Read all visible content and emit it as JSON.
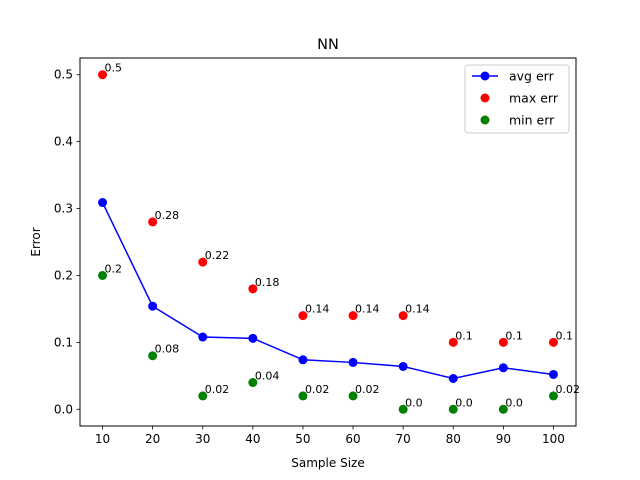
{
  "chart_data": {
    "type": "line",
    "title": "NN",
    "xlabel": "Sample Size",
    "ylabel": "Error",
    "x": [
      10,
      20,
      30,
      40,
      50,
      60,
      70,
      80,
      90,
      100
    ],
    "xlim": [
      5.5,
      104.5
    ],
    "ylim": [
      -0.025,
      0.525
    ],
    "xticks": [
      "10",
      "20",
      "30",
      "40",
      "50",
      "60",
      "70",
      "80",
      "90",
      "100"
    ],
    "yticks": [
      0.0,
      0.1,
      0.2,
      0.3,
      0.4,
      0.5
    ],
    "ytick_labels": [
      "0.0",
      "0.1",
      "0.2",
      "0.3",
      "0.4",
      "0.5"
    ],
    "grid": false,
    "legend_position": "top-right",
    "series": [
      {
        "name": "avg err",
        "style": "line-marker",
        "color": "#0000ff",
        "values": [
          0.309,
          0.154,
          0.108,
          0.106,
          0.074,
          0.07,
          0.064,
          0.046,
          0.062,
          0.052
        ]
      },
      {
        "name": "max err",
        "style": "marker",
        "color": "#ff0000",
        "values": [
          0.5,
          0.28,
          0.22,
          0.18,
          0.14,
          0.14,
          0.14,
          0.1,
          0.1,
          0.1
        ],
        "labels": [
          "0.5",
          "0.28",
          "0.22",
          "0.18",
          "0.14",
          "0.14",
          "0.14",
          "0.1",
          "0.1",
          "0.1"
        ]
      },
      {
        "name": "min err",
        "style": "marker",
        "color": "#008000",
        "values": [
          0.2,
          0.08,
          0.02,
          0.04,
          0.02,
          0.02,
          0.0,
          0.0,
          0.0,
          0.02
        ],
        "labels": [
          "0.2",
          "0.08",
          "0.02",
          "0.04",
          "0.02",
          "0.02",
          "0.0",
          "0.0",
          "0.0",
          "0.02"
        ]
      }
    ]
  }
}
